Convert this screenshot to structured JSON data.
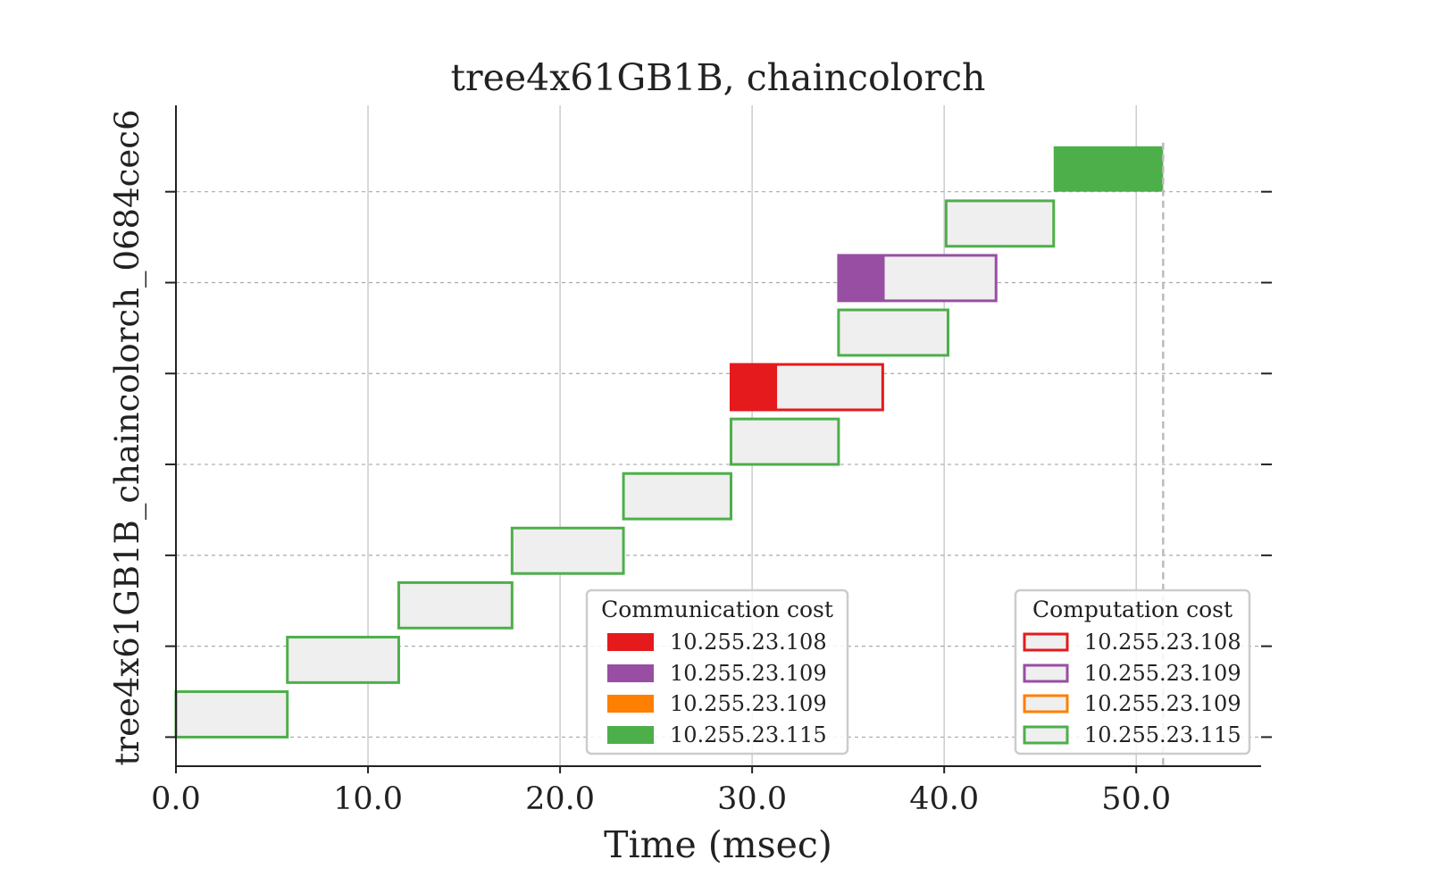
{
  "chart_data": {
    "type": "gantt",
    "title": "tree4x61GB1B, chaincolorch",
    "xlabel": "Time (msec)",
    "ylabel": "tree4x61GB1B_chaincolorch_0684cec6",
    "xlim": [
      0,
      56.5
    ],
    "ylim": [
      -0.32,
      6.95
    ],
    "xticks": [
      0,
      10,
      20,
      30,
      40,
      50
    ],
    "xtick_labels": [
      "0.0",
      "10.0",
      "20.0",
      "30.0",
      "40.0",
      "50.0"
    ],
    "ytick_levels": [
      0,
      1,
      2,
      3,
      4,
      5,
      6
    ],
    "makespan": 51.4,
    "grid": {
      "x": true,
      "y": "dashed"
    },
    "colors": {
      "10.255.23.108": "#e41a1c",
      "10.255.23.109_a": "#984ea3",
      "10.255.23.109_b": "#ff7f00",
      "10.255.23.115": "#4daf4a",
      "task_fill": "#efefef"
    },
    "tasks": [
      {
        "host_key": "10.255.23.115",
        "level": 0.0,
        "start": 0.0,
        "comm": 0.0,
        "comp": 5.8
      },
      {
        "host_key": "10.255.23.115",
        "level": 0.6,
        "start": 5.8,
        "comm": 0.0,
        "comp": 5.8
      },
      {
        "host_key": "10.255.23.115",
        "level": 1.2,
        "start": 11.6,
        "comm": 0.0,
        "comp": 5.9
      },
      {
        "host_key": "10.255.23.115",
        "level": 1.8,
        "start": 17.5,
        "comm": 0.0,
        "comp": 5.8
      },
      {
        "host_key": "10.255.23.115",
        "level": 2.4,
        "start": 23.3,
        "comm": 0.0,
        "comp": 5.6
      },
      {
        "host_key": "10.255.23.115",
        "level": 3.0,
        "start": 28.9,
        "comm": 0.0,
        "comp": 5.6
      },
      {
        "host_key": "10.255.23.108",
        "level": 3.6,
        "start": 28.9,
        "comm": 2.4,
        "comp": 5.5
      },
      {
        "host_key": "10.255.23.115",
        "level": 4.2,
        "start": 34.5,
        "comm": 0.0,
        "comp": 5.7
      },
      {
        "host_key": "10.255.23.109_a",
        "level": 4.8,
        "start": 34.5,
        "comm": 2.4,
        "comp": 5.8
      },
      {
        "host_key": "10.255.23.115",
        "level": 5.4,
        "start": 40.1,
        "comm": 0.0,
        "comp": 5.6
      },
      {
        "host_key": "10.255.23.115",
        "level": 6.0,
        "start": 45.7,
        "comm": 5.7,
        "comp": 0.0
      }
    ],
    "legend_communication": {
      "title": "Communication cost",
      "placement": "lower-center",
      "entries": [
        {
          "label": "10.255.23.108",
          "color": "#e41a1c"
        },
        {
          "label": "10.255.23.109",
          "color": "#984ea3"
        },
        {
          "label": "10.255.23.109",
          "color": "#ff7f00"
        },
        {
          "label": "10.255.23.115",
          "color": "#4daf4a"
        }
      ]
    },
    "legend_computation": {
      "title": "Computation cost",
      "placement": "lower-right",
      "entries": [
        {
          "label": "10.255.23.108",
          "color": "#e41a1c"
        },
        {
          "label": "10.255.23.109",
          "color": "#984ea3"
        },
        {
          "label": "10.255.23.109",
          "color": "#ff7f00"
        },
        {
          "label": "10.255.23.115",
          "color": "#4daf4a"
        }
      ]
    }
  }
}
